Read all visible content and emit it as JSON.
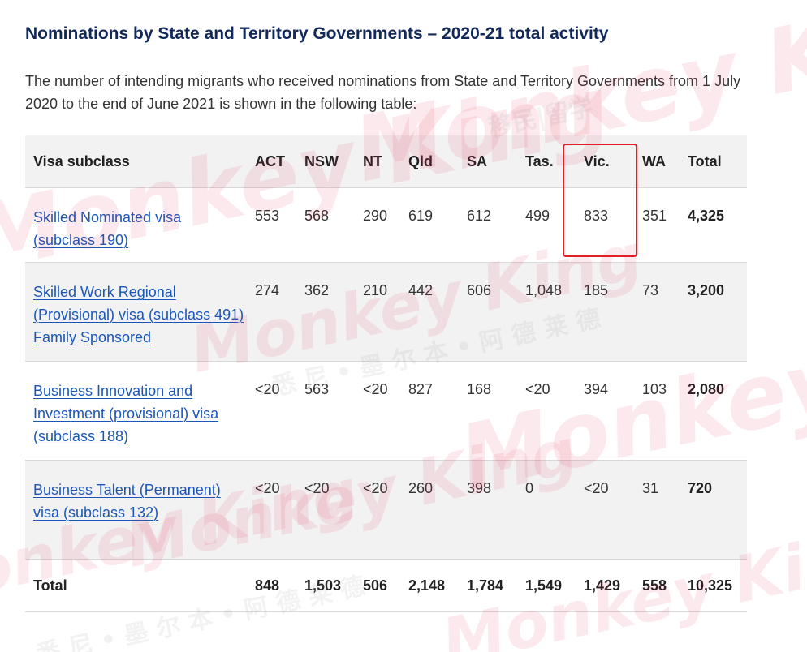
{
  "heading": "Nominations by State and Territory Governments – 2020-21 total activity",
  "intro": "The number of intending migrants who received nominations from State and Territory Governments from 1 July 2020 to the end of June 2021 is shown in the following table:",
  "table": {
    "headers": [
      "Visa subclass",
      "ACT",
      "NSW",
      "NT",
      "Qld",
      "SA",
      "Tas.",
      "Vic.",
      "WA",
      "Total"
    ],
    "rows": [
      {
        "visa": "Skilled Nominated visa (subclass 190)",
        "values": [
          "553",
          "568",
          "290",
          "619",
          "612",
          "499",
          "833",
          "351"
        ],
        "total": "4,325"
      },
      {
        "visa": "Skilled Work Regional (Provisional) visa (subclass 491) Family Sponsored",
        "values": [
          "274",
          "362",
          "210",
          "442",
          "606",
          "1,048",
          "185",
          "73"
        ],
        "total": "3,200"
      },
      {
        "visa": "Business Innovation and Investment (provisional) visa (subclass 188)",
        "values": [
          "<20",
          "563",
          "<20",
          "827",
          "168",
          "<20",
          "394",
          "103"
        ],
        "total": "2,080"
      },
      {
        "visa": "Business Talent (Permanent) visa (subclass 132)",
        "values": [
          "<20",
          "<20",
          "<20",
          "260",
          "398",
          "0",
          "<20",
          "31"
        ],
        "total": "720"
      }
    ],
    "total_row": {
      "label": "Total",
      "values": [
        "848",
        "1,503",
        "506",
        "2,148",
        "1,784",
        "1,549",
        "1,429",
        "558"
      ],
      "total": "10,325"
    }
  },
  "watermark": {
    "brand": "Monkey King",
    "cn_text": "移民|留学",
    "cn_text2": "悉 尼 • 墨 尔 本 • 阿 德 莱 德"
  },
  "colors": {
    "heading": "#12285b",
    "link": "#1a56b8",
    "highlight": "#e02020",
    "header_bg": "#f2f2f2"
  }
}
